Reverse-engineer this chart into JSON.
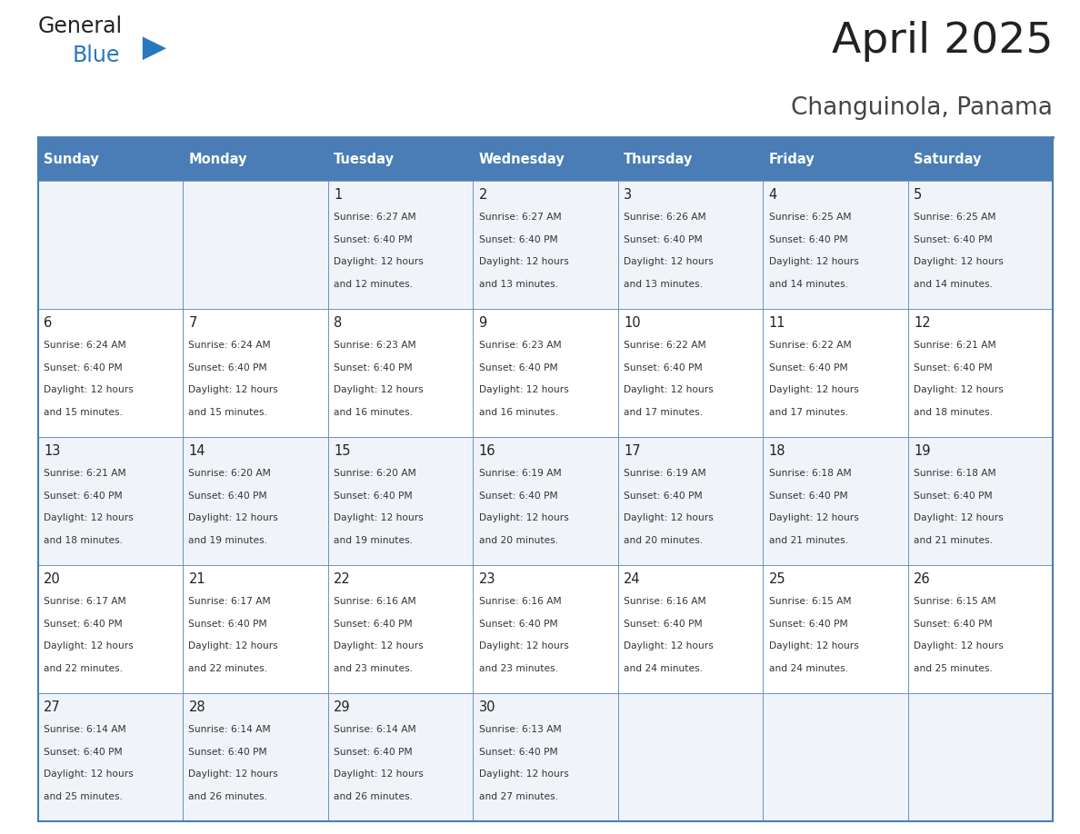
{
  "title": "April 2025",
  "subtitle": "Changuinola, Panama",
  "days_of_week": [
    "Sunday",
    "Monday",
    "Tuesday",
    "Wednesday",
    "Thursday",
    "Friday",
    "Saturday"
  ],
  "header_bg": "#4A7DB5",
  "header_text": "#FFFFFF",
  "cell_bg_odd_row": "#F0F4F8",
  "cell_bg_even_row": "#FFFFFF",
  "border_color": "#4A7DB5",
  "day_number_color": "#222222",
  "info_text_color": "#333333",
  "title_color": "#222222",
  "subtitle_color": "#444444",
  "logo_general_color": "#222222",
  "logo_blue_color": "#2878BE",
  "calendar_data": [
    [
      {
        "day": "",
        "sunrise": "",
        "sunset": "",
        "daylight": ""
      },
      {
        "day": "",
        "sunrise": "",
        "sunset": "",
        "daylight": ""
      },
      {
        "day": "1",
        "sunrise": "6:27 AM",
        "sunset": "6:40 PM",
        "daylight": "12 hours and 12 minutes."
      },
      {
        "day": "2",
        "sunrise": "6:27 AM",
        "sunset": "6:40 PM",
        "daylight": "12 hours and 13 minutes."
      },
      {
        "day": "3",
        "sunrise": "6:26 AM",
        "sunset": "6:40 PM",
        "daylight": "12 hours and 13 minutes."
      },
      {
        "day": "4",
        "sunrise": "6:25 AM",
        "sunset": "6:40 PM",
        "daylight": "12 hours and 14 minutes."
      },
      {
        "day": "5",
        "sunrise": "6:25 AM",
        "sunset": "6:40 PM",
        "daylight": "12 hours and 14 minutes."
      }
    ],
    [
      {
        "day": "6",
        "sunrise": "6:24 AM",
        "sunset": "6:40 PM",
        "daylight": "12 hours and 15 minutes."
      },
      {
        "day": "7",
        "sunrise": "6:24 AM",
        "sunset": "6:40 PM",
        "daylight": "12 hours and 15 minutes."
      },
      {
        "day": "8",
        "sunrise": "6:23 AM",
        "sunset": "6:40 PM",
        "daylight": "12 hours and 16 minutes."
      },
      {
        "day": "9",
        "sunrise": "6:23 AM",
        "sunset": "6:40 PM",
        "daylight": "12 hours and 16 minutes."
      },
      {
        "day": "10",
        "sunrise": "6:22 AM",
        "sunset": "6:40 PM",
        "daylight": "12 hours and 17 minutes."
      },
      {
        "day": "11",
        "sunrise": "6:22 AM",
        "sunset": "6:40 PM",
        "daylight": "12 hours and 17 minutes."
      },
      {
        "day": "12",
        "sunrise": "6:21 AM",
        "sunset": "6:40 PM",
        "daylight": "12 hours and 18 minutes."
      }
    ],
    [
      {
        "day": "13",
        "sunrise": "6:21 AM",
        "sunset": "6:40 PM",
        "daylight": "12 hours and 18 minutes."
      },
      {
        "day": "14",
        "sunrise": "6:20 AM",
        "sunset": "6:40 PM",
        "daylight": "12 hours and 19 minutes."
      },
      {
        "day": "15",
        "sunrise": "6:20 AM",
        "sunset": "6:40 PM",
        "daylight": "12 hours and 19 minutes."
      },
      {
        "day": "16",
        "sunrise": "6:19 AM",
        "sunset": "6:40 PM",
        "daylight": "12 hours and 20 minutes."
      },
      {
        "day": "17",
        "sunrise": "6:19 AM",
        "sunset": "6:40 PM",
        "daylight": "12 hours and 20 minutes."
      },
      {
        "day": "18",
        "sunrise": "6:18 AM",
        "sunset": "6:40 PM",
        "daylight": "12 hours and 21 minutes."
      },
      {
        "day": "19",
        "sunrise": "6:18 AM",
        "sunset": "6:40 PM",
        "daylight": "12 hours and 21 minutes."
      }
    ],
    [
      {
        "day": "20",
        "sunrise": "6:17 AM",
        "sunset": "6:40 PM",
        "daylight": "12 hours and 22 minutes."
      },
      {
        "day": "21",
        "sunrise": "6:17 AM",
        "sunset": "6:40 PM",
        "daylight": "12 hours and 22 minutes."
      },
      {
        "day": "22",
        "sunrise": "6:16 AM",
        "sunset": "6:40 PM",
        "daylight": "12 hours and 23 minutes."
      },
      {
        "day": "23",
        "sunrise": "6:16 AM",
        "sunset": "6:40 PM",
        "daylight": "12 hours and 23 minutes."
      },
      {
        "day": "24",
        "sunrise": "6:16 AM",
        "sunset": "6:40 PM",
        "daylight": "12 hours and 24 minutes."
      },
      {
        "day": "25",
        "sunrise": "6:15 AM",
        "sunset": "6:40 PM",
        "daylight": "12 hours and 24 minutes."
      },
      {
        "day": "26",
        "sunrise": "6:15 AM",
        "sunset": "6:40 PM",
        "daylight": "12 hours and 25 minutes."
      }
    ],
    [
      {
        "day": "27",
        "sunrise": "6:14 AM",
        "sunset": "6:40 PM",
        "daylight": "12 hours and 25 minutes."
      },
      {
        "day": "28",
        "sunrise": "6:14 AM",
        "sunset": "6:40 PM",
        "daylight": "12 hours and 26 minutes."
      },
      {
        "day": "29",
        "sunrise": "6:14 AM",
        "sunset": "6:40 PM",
        "daylight": "12 hours and 26 minutes."
      },
      {
        "day": "30",
        "sunrise": "6:13 AM",
        "sunset": "6:40 PM",
        "daylight": "12 hours and 27 minutes."
      },
      {
        "day": "",
        "sunrise": "",
        "sunset": "",
        "daylight": ""
      },
      {
        "day": "",
        "sunrise": "",
        "sunset": "",
        "daylight": ""
      },
      {
        "day": "",
        "sunrise": "",
        "sunset": "",
        "daylight": ""
      }
    ]
  ]
}
